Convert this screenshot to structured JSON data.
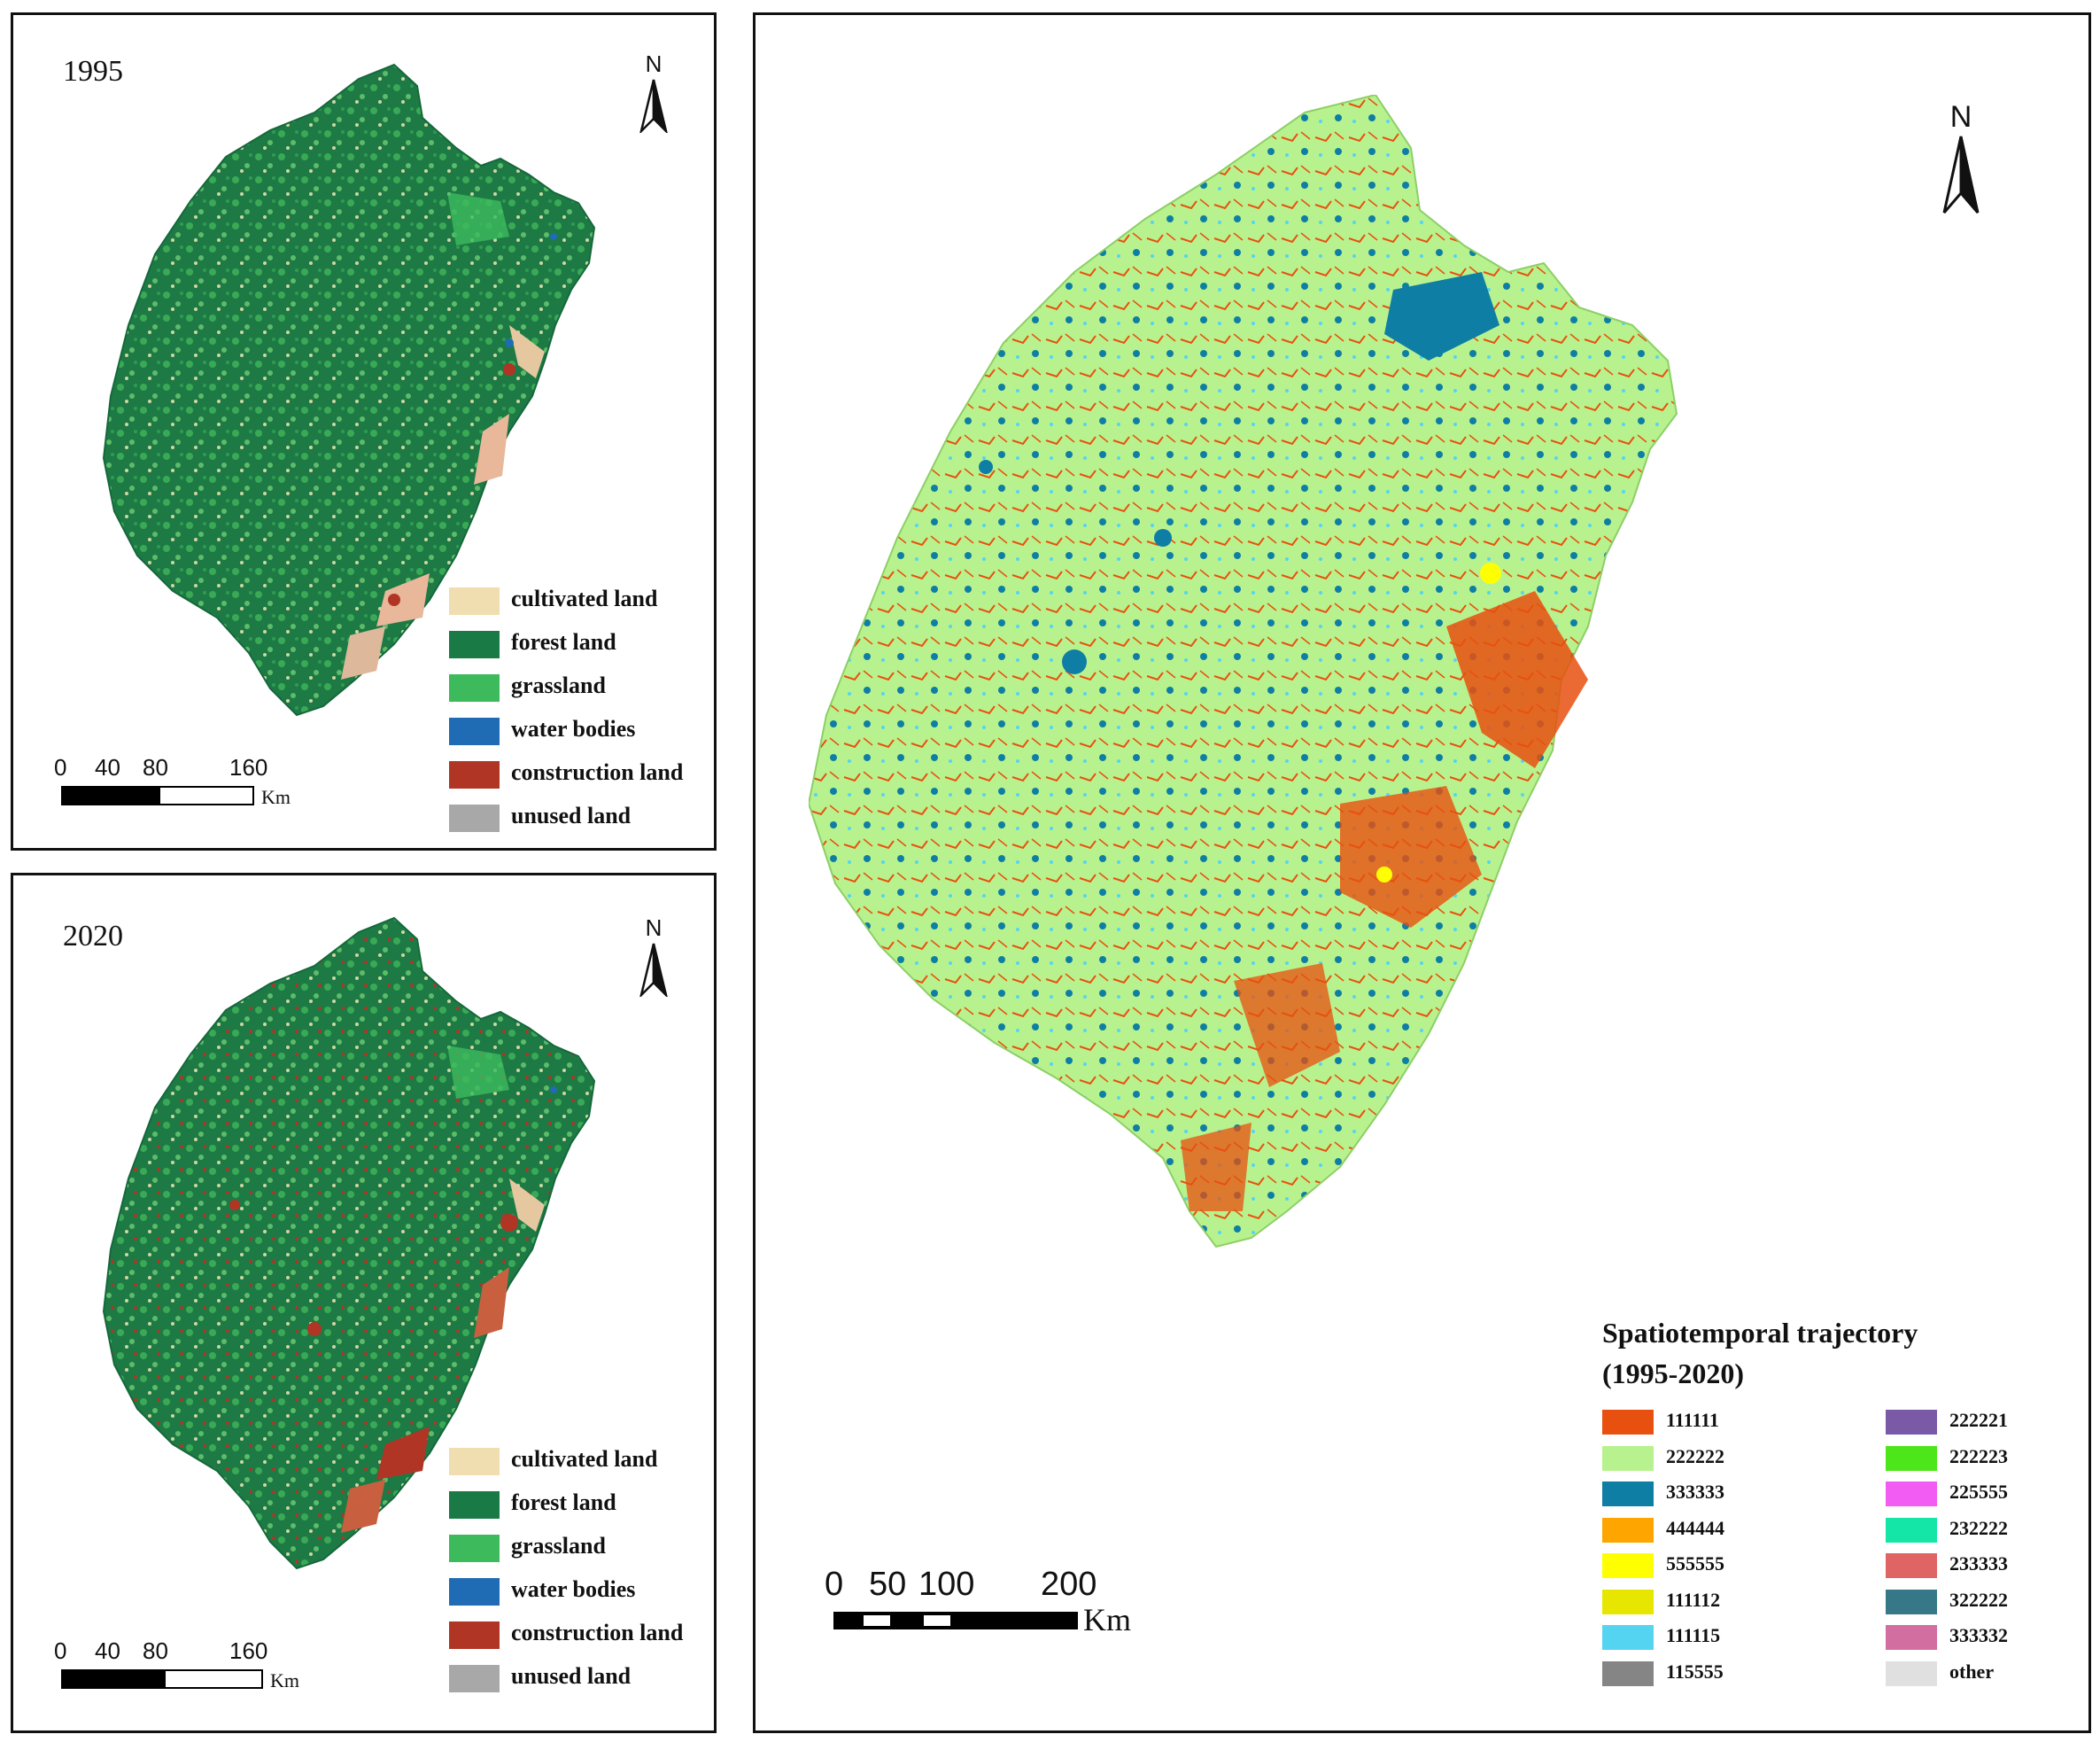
{
  "panel_1995": {
    "year": "1995",
    "north_label": "N",
    "scale": {
      "ticks": [
        "0",
        "40",
        "80",
        "160"
      ],
      "unit": "Km"
    },
    "legend": [
      {
        "label": "cultivated land",
        "color": "#f0deb0"
      },
      {
        "label": "forest land",
        "color": "#1a7a46"
      },
      {
        "label": "grassland",
        "color": "#3dba5c"
      },
      {
        "label": "water bodies",
        "color": "#1f6cb5"
      },
      {
        "label": "construction land",
        "color": "#b03525"
      },
      {
        "label": "unused land",
        "color": "#a8a8a8"
      }
    ]
  },
  "panel_2020": {
    "year": "2020",
    "north_label": "N",
    "scale": {
      "ticks": [
        "0",
        "40",
        "80",
        "160"
      ],
      "unit": "Km"
    },
    "legend": [
      {
        "label": "cultivated land",
        "color": "#f0deb0"
      },
      {
        "label": "forest land",
        "color": "#1a7a46"
      },
      {
        "label": "grassland",
        "color": "#3dba5c"
      },
      {
        "label": "water bodies",
        "color": "#1f6cb5"
      },
      {
        "label": "construction land",
        "color": "#b03525"
      },
      {
        "label": "unused land",
        "color": "#a8a8a8"
      }
    ]
  },
  "trajectory_panel": {
    "north_label": "N",
    "scale": {
      "ticks": [
        "0",
        "50",
        "100",
        "200"
      ],
      "unit": "Km"
    },
    "legend_title_line1": "Spatiotemporal trajectory",
    "legend_title_line2": "(1995-2020)",
    "legend_left": [
      {
        "label": "111111",
        "color": "#e8500f"
      },
      {
        "label": "222222",
        "color": "#b8f28e"
      },
      {
        "label": "333333",
        "color": "#0f7ea4"
      },
      {
        "label": "444444",
        "color": "#ffa500"
      },
      {
        "label": "555555",
        "color": "#ffff00"
      },
      {
        "label": "111112",
        "color": "#e6e600"
      },
      {
        "label": "111115",
        "color": "#55d4f2"
      },
      {
        "label": "115555",
        "color": "#858585"
      }
    ],
    "legend_right": [
      {
        "label": "222221",
        "color": "#7a5aa6"
      },
      {
        "label": "222223",
        "color": "#4ce61a"
      },
      {
        "label": "225555",
        "color": "#f25cf2"
      },
      {
        "label": "232222",
        "color": "#14e6a8"
      },
      {
        "label": "233333",
        "color": "#e06464"
      },
      {
        "label": "322222",
        "color": "#377888"
      },
      {
        "label": "333332",
        "color": "#d26ea0"
      },
      {
        "label": "other",
        "color": "#e0e0e0"
      }
    ]
  }
}
